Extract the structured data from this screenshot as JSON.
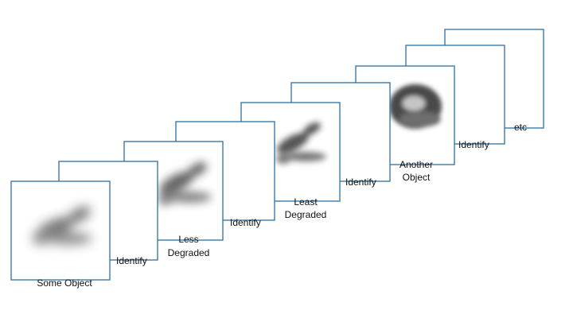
{
  "labels": {
    "some_object": "Some Object",
    "less_line1": "Less",
    "less_line2": "Degraded",
    "least_line1": "Least",
    "least_line2": "Degraded",
    "another_line1": "Another",
    "another_line2": "Object",
    "identify_1": "Identify",
    "identify_2": "Identify",
    "identify_3": "Identify",
    "identify_4": "Identify",
    "etc": "etc"
  },
  "colors": {
    "frame_stroke": "#2e6e9e",
    "object_gray": "#3a3a3a"
  }
}
